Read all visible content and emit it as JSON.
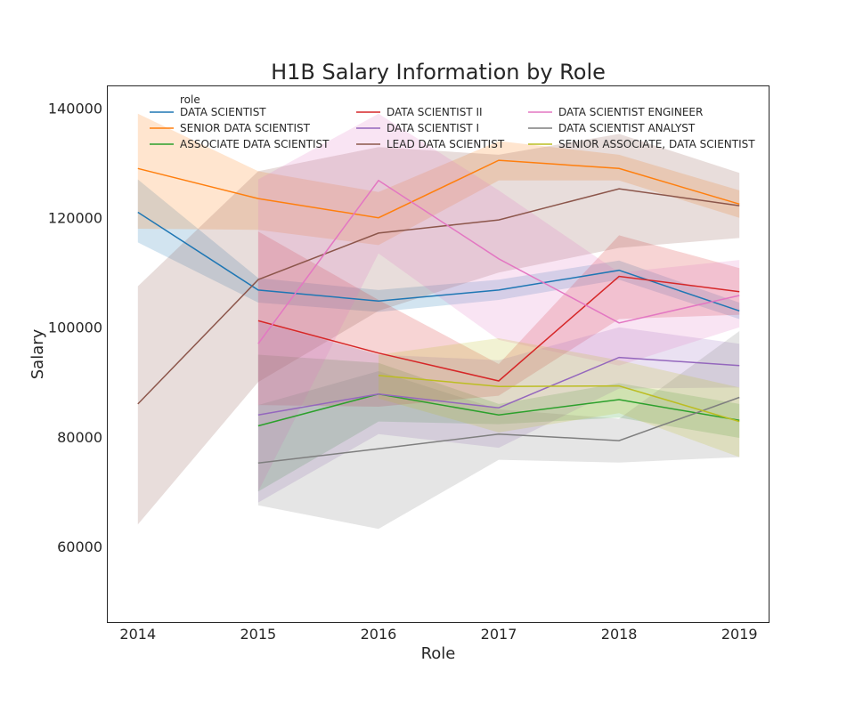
{
  "chart_data": {
    "type": "line",
    "title": "H1B Salary Information by Role",
    "xlabel": "Role",
    "ylabel": "Salary",
    "x": [
      2014,
      2015,
      2016,
      2017,
      2018,
      2019
    ],
    "xlim": [
      2013.75,
      2019.25
    ],
    "ylim": [
      46000,
      144000
    ],
    "yticks": [
      60000,
      80000,
      100000,
      120000,
      140000
    ],
    "ytick_labels": [
      "60000",
      "80000",
      "100000",
      "120000",
      "140000"
    ],
    "xtick_labels": [
      "2014",
      "2015",
      "2016",
      "2017",
      "2018",
      "2019"
    ],
    "grid": false,
    "legend": {
      "title": "role",
      "placement": "top",
      "columns": 3
    },
    "series": [
      {
        "name": "DATA SCIENTIST",
        "color": "#1f77b4",
        "x": [
          2014,
          2015,
          2016,
          2017,
          2018,
          2019
        ],
        "values": [
          121000,
          106800,
          104800,
          106800,
          110400,
          103000
        ],
        "lower": [
          115500,
          104500,
          102800,
          105000,
          108700,
          101500
        ],
        "upper": [
          127000,
          109000,
          106800,
          108700,
          112200,
          104500
        ]
      },
      {
        "name": "SENIOR DATA SCIENTIST",
        "color": "#ff7f0e",
        "x": [
          2014,
          2015,
          2016,
          2017,
          2018,
          2019
        ],
        "values": [
          129000,
          123500,
          120000,
          130500,
          129000,
          122500
        ],
        "lower": [
          118000,
          117800,
          115000,
          126800,
          126800,
          120000
        ],
        "upper": [
          139000,
          128500,
          124700,
          134000,
          131500,
          125000
        ]
      },
      {
        "name": "ASSOCIATE DATA SCIENTIST",
        "color": "#2ca02c",
        "x": [
          2015,
          2016,
          2017,
          2018,
          2019
        ],
        "values": [
          82000,
          87800,
          84000,
          86800,
          83000
        ],
        "lower": [
          70000,
          82800,
          82300,
          83500,
          79800
        ],
        "upper": [
          95000,
          93500,
          86000,
          89800,
          86000
        ]
      },
      {
        "name": "DATA SCIENTIST II",
        "color": "#d62728",
        "x": [
          2015,
          2016,
          2017,
          2018,
          2019
        ],
        "values": [
          101200,
          95300,
          90200,
          109300,
          106500
        ],
        "lower": [
          85800,
          85500,
          87500,
          101500,
          102300
        ],
        "upper": [
          117500,
          105000,
          93300,
          116800,
          110800
        ]
      },
      {
        "name": "DATA SCIENTIST I",
        "color": "#9467bd",
        "x": [
          2015,
          2016,
          2017,
          2018,
          2019
        ],
        "values": [
          84000,
          87800,
          85300,
          94500,
          93000
        ],
        "lower": [
          68000,
          80500,
          78000,
          88800,
          89000
        ],
        "upper": [
          101000,
          95000,
          94000,
          100000,
          97000
        ]
      },
      {
        "name": "LEAD DATA SCIENTIST",
        "color": "#8c564b",
        "x": [
          2014,
          2015,
          2016,
          2017,
          2018,
          2019
        ],
        "values": [
          86000,
          108700,
          117200,
          119600,
          125300,
          122200
        ],
        "lower": [
          64000,
          90000,
          103000,
          110000,
          114500,
          116300
        ],
        "upper": [
          107500,
          128500,
          132900,
          131500,
          135300,
          128200
        ]
      },
      {
        "name": "DATA SCIENTIST ENGINEER",
        "color": "#e377c2",
        "x": [
          2015,
          2016,
          2017,
          2018,
          2019
        ],
        "values": [
          97000,
          126800,
          112500,
          100800,
          105800
        ],
        "lower": [
          70000,
          113500,
          97700,
          93000,
          100000
        ],
        "upper": [
          127000,
          139000,
          125000,
          110000,
          112300
        ]
      },
      {
        "name": "DATA SCIENTIST ANALYST",
        "color": "#7f7f7f",
        "x": [
          2015,
          2016,
          2017,
          2018,
          2019
        ],
        "values": [
          75200,
          77800,
          80500,
          79300,
          87200
        ],
        "lower": [
          67500,
          63200,
          75800,
          75300,
          76300
        ],
        "upper": [
          85800,
          92000,
          85000,
          83300,
          99300
        ]
      },
      {
        "name": "SENIOR ASSOCIATE, DATA SCIENTIST",
        "color": "#bcbd22",
        "x": [
          2016,
          2017,
          2018,
          2019
        ],
        "values": [
          91200,
          89200,
          89300,
          82800
        ],
        "lower": [
          87000,
          80800,
          84300,
          76300
        ],
        "upper": [
          95000,
          98000,
          94000,
          89000
        ]
      }
    ]
  }
}
